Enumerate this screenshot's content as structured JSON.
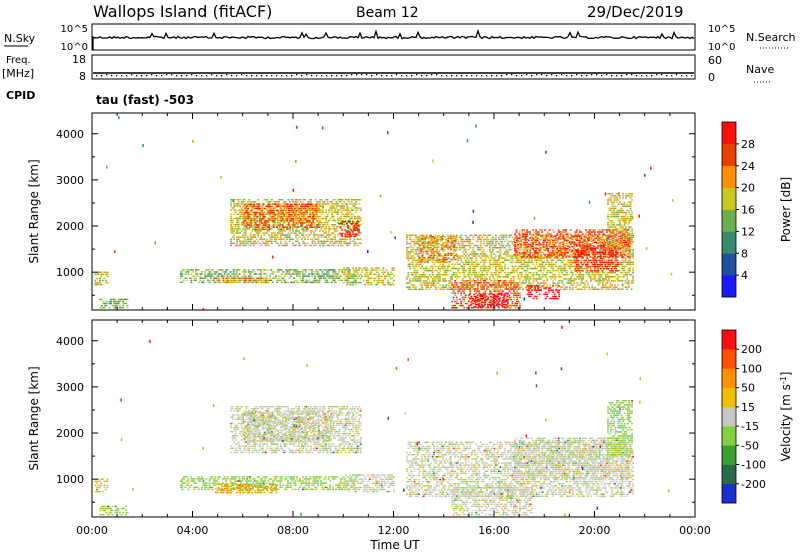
{
  "header": {
    "site": "Wallops Island (fitACF)",
    "beam": "Beam 12",
    "date": "29/Dec/2019"
  },
  "strips": {
    "nsky_label": "N.Sky",
    "nsky_ticks": [
      "10^5",
      "10^0"
    ],
    "nsearch_label": "N.Search",
    "nsearch_ticks": [
      "10^5",
      "10^0"
    ],
    "freq_label_1": "Freq.",
    "freq_label_2": "[MHz]",
    "freq_ticks": [
      "18",
      "8"
    ],
    "nave_label": "Nave",
    "nave_ticks": [
      "60",
      "0"
    ],
    "cpid_label": "CPID",
    "cpid_text": "tau (fast) -503"
  },
  "chart_data": [
    {
      "type": "heatmap",
      "name": "power-panel",
      "xlabel": "",
      "ylabel": "Slant Range [km]",
      "x_ticks": [
        "00:00",
        "04:00",
        "08:00",
        "12:00",
        "16:00",
        "20:00",
        "00:00"
      ],
      "x_range_hours": [
        0,
        24
      ],
      "y_ticks": [
        1000,
        2000,
        3000,
        4000
      ],
      "ylim": [
        180,
        4450
      ],
      "colorbar": {
        "label": "Power [dB]",
        "tick_labels": [
          "4",
          "8",
          "12",
          "16",
          "20",
          "24",
          "28"
        ],
        "colors": [
          "#1a1aff",
          "#2050a0",
          "#3a8a6a",
          "#6ab04c",
          "#c8c820",
          "#ff9000",
          "#e84000",
          "#ff1010"
        ]
      },
      "regions": [
        {
          "t0": 0.1,
          "t1": 0.6,
          "r0": 700,
          "r1": 1000,
          "level": 4
        },
        {
          "t0": 0.3,
          "t1": 1.4,
          "r0": 200,
          "r1": 400,
          "level": 3
        },
        {
          "t0": 3.5,
          "t1": 10.5,
          "r0": 750,
          "r1": 1050,
          "level": 3
        },
        {
          "t0": 4.9,
          "t1": 6.9,
          "r0": 750,
          "r1": 880,
          "level": 5
        },
        {
          "t0": 5.5,
          "t1": 10.7,
          "r0": 1550,
          "r1": 2550,
          "level": 4
        },
        {
          "t0": 6.0,
          "t1": 9.0,
          "r0": 1900,
          "r1": 2450,
          "level": 6
        },
        {
          "t0": 9.8,
          "t1": 10.6,
          "r0": 1750,
          "r1": 2100,
          "level": 8
        },
        {
          "t0": 10.0,
          "t1": 12.0,
          "r0": 700,
          "r1": 1100,
          "level": 4
        },
        {
          "t0": 12.5,
          "t1": 21.5,
          "r0": 600,
          "r1": 1800,
          "level": 4
        },
        {
          "t0": 13.0,
          "t1": 14.5,
          "r0": 1200,
          "r1": 1750,
          "level": 5
        },
        {
          "t0": 14.3,
          "t1": 17.0,
          "r0": 200,
          "r1": 800,
          "level": 6
        },
        {
          "t0": 15.0,
          "t1": 16.5,
          "r0": 220,
          "r1": 500,
          "level": 9
        },
        {
          "t0": 16.8,
          "t1": 21.4,
          "r0": 1300,
          "r1": 1900,
          "level": 6
        },
        {
          "t0": 17.3,
          "t1": 18.6,
          "r0": 400,
          "r1": 700,
          "level": 8
        },
        {
          "t0": 19.2,
          "t1": 20.9,
          "r0": 1000,
          "r1": 1550,
          "level": 7
        },
        {
          "t0": 20.5,
          "t1": 21.5,
          "r0": 1500,
          "r1": 2700,
          "level": 4
        }
      ]
    },
    {
      "type": "heatmap",
      "name": "velocity-panel",
      "xlabel": "Time UT",
      "ylabel": "Slant Range [km]",
      "x_ticks": [
        "00:00",
        "04:00",
        "08:00",
        "12:00",
        "16:00",
        "20:00",
        "00:00"
      ],
      "x_range_hours": [
        0,
        24
      ],
      "y_ticks": [
        1000,
        2000,
        3000,
        4000
      ],
      "ylim": [
        180,
        4450
      ],
      "colorbar": {
        "label": "Velocity [m s^-1]",
        "tick_labels": [
          "200",
          "100",
          "50",
          "15",
          "-15",
          "-50",
          "-100",
          "-200"
        ],
        "colors": [
          "#1a2fd0",
          "#2a6a4a",
          "#3aa030",
          "#80d040",
          "#c8c8c0",
          "#f0c000",
          "#ff9000",
          "#ff5000",
          "#ff1010"
        ]
      },
      "regions": [
        {
          "t0": 0.1,
          "t1": 0.6,
          "r0": 700,
          "r1": 1000,
          "level": 5
        },
        {
          "t0": 0.3,
          "t1": 1.4,
          "r0": 200,
          "r1": 400,
          "level": 3
        },
        {
          "t0": 3.5,
          "t1": 10.5,
          "r0": 750,
          "r1": 1050,
          "level": 3
        },
        {
          "t0": 4.9,
          "t1": 7.3,
          "r0": 680,
          "r1": 900,
          "level": 6
        },
        {
          "t0": 5.5,
          "t1": 10.7,
          "r0": 1550,
          "r1": 2550,
          "level": 4
        },
        {
          "t0": 6.0,
          "t1": 9.5,
          "r0": 1800,
          "r1": 2450,
          "level": 4
        },
        {
          "t0": 10.0,
          "t1": 12.0,
          "r0": 700,
          "r1": 1100,
          "level": 4
        },
        {
          "t0": 12.5,
          "t1": 21.5,
          "r0": 600,
          "r1": 1800,
          "level": 4
        },
        {
          "t0": 14.3,
          "t1": 17.5,
          "r0": 200,
          "r1": 800,
          "level": 4
        },
        {
          "t0": 16.8,
          "t1": 21.4,
          "r0": 1000,
          "r1": 1900,
          "level": 4
        },
        {
          "t0": 20.5,
          "t1": 21.5,
          "r0": 1500,
          "r1": 2700,
          "level": 3
        }
      ]
    }
  ]
}
